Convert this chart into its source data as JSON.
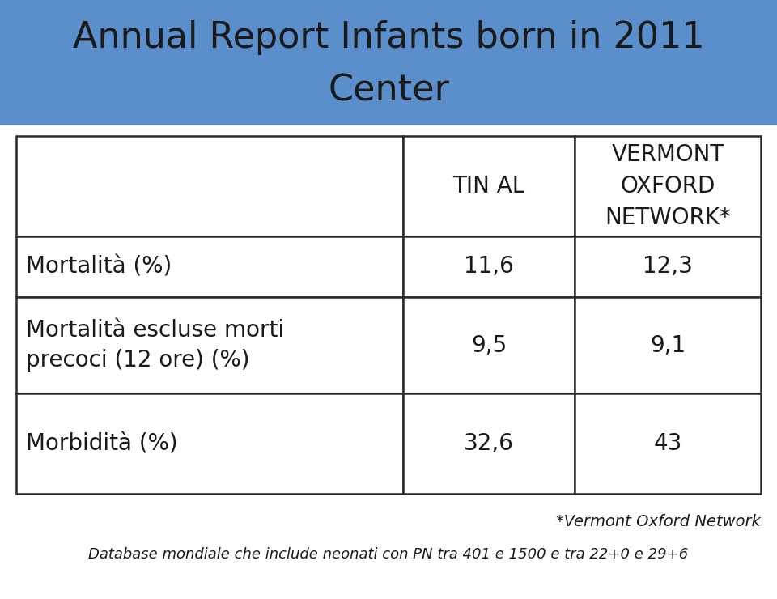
{
  "title_line1": "Annual Report Infants born in 2011",
  "title_line2": "Center",
  "title_bg_color": "#5B8FCC",
  "title_text_color": "#1a1a1a",
  "header_col2": "TIN AL",
  "header_col3": "VERMONT\nOXFORD\nNETWORK*",
  "rows": [
    [
      "Mortalità (%)",
      "11,6",
      "12,3"
    ],
    [
      "Mortalità escluse morti\nprecoci (12 ore) (%)",
      "9,5",
      "9,1"
    ],
    [
      "Morbidità (%)",
      "32,6",
      "43"
    ]
  ],
  "footnote1": "*Vermont Oxford Network",
  "footnote2": "Database mondiale che include neonati con PN tra 401 e 1500 e tra 22+0 e 29+6",
  "bg_color": "#ffffff",
  "table_border_color": "#2a2a2a",
  "text_color": "#1a1a1a",
  "title_fontsize": 32,
  "table_fontsize": 20,
  "footnote1_fontsize": 14,
  "footnote2_fontsize": 13
}
